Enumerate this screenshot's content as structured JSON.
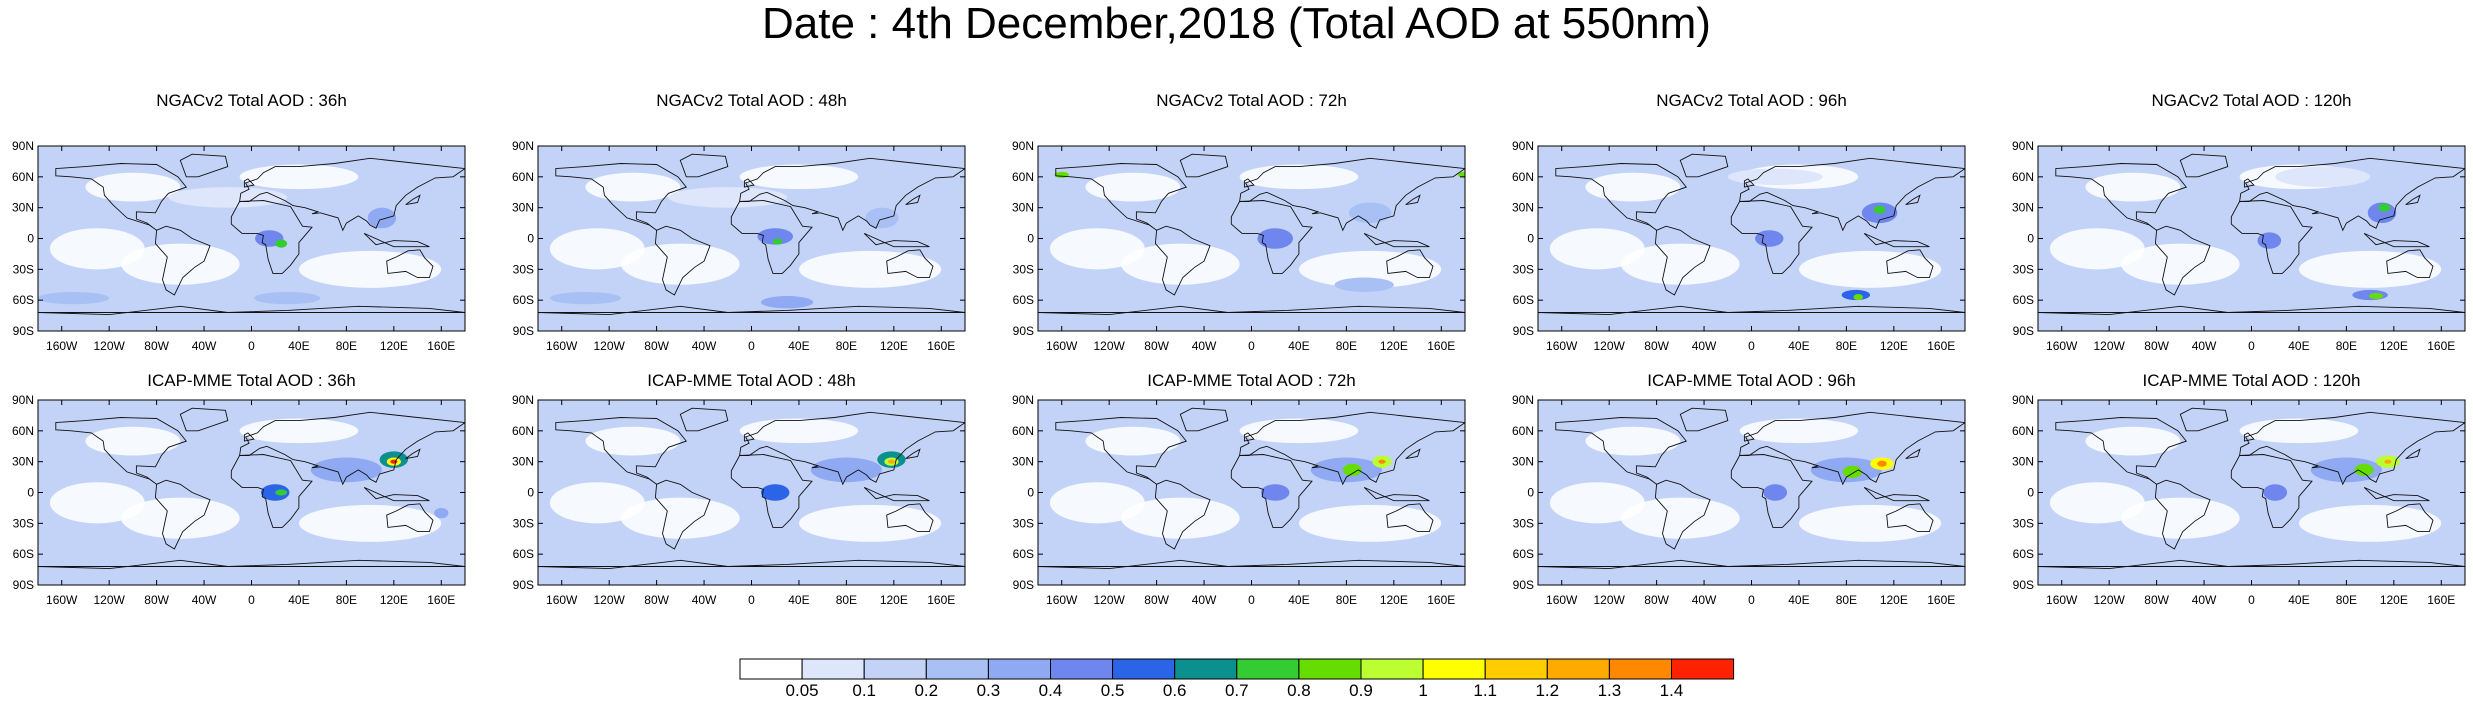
{
  "title": "Date : 4th December,2018 (Total AOD at 550nm)",
  "rows": [
    {
      "model": "NGACv2",
      "panels": [
        {
          "title": "NGACv2 Total AOD : 36h"
        },
        {
          "title": "NGACv2 Total AOD : 48h"
        },
        {
          "title": "NGACv2 Total AOD : 72h"
        },
        {
          "title": "NGACv2 Total AOD : 96h"
        },
        {
          "title": "NGACv2 Total AOD : 120h"
        }
      ]
    },
    {
      "model": "ICAP-MME",
      "panels": [
        {
          "title": "ICAP-MME Total AOD : 36h"
        },
        {
          "title": "ICAP-MME Total AOD : 48h"
        },
        {
          "title": "ICAP-MME Total AOD : 72h"
        },
        {
          "title": "ICAP-MME Total AOD : 96h"
        },
        {
          "title": "ICAP-MME Total AOD : 120h"
        }
      ]
    }
  ],
  "lat_labels": [
    "90N",
    "60N",
    "30N",
    "0",
    "30S",
    "60S",
    "90S"
  ],
  "lon_labels": [
    "160W",
    "120W",
    "80W",
    "40W",
    "0",
    "40E",
    "80E",
    "120E",
    "160E"
  ],
  "colorbar": {
    "labels": [
      "0.05",
      "0.1",
      "0.2",
      "0.3",
      "0.4",
      "0.5",
      "0.6",
      "0.7",
      "0.8",
      "0.9",
      "1",
      "1.1",
      "1.2",
      "1.3",
      "1.4"
    ],
    "colors": [
      "#ffffff",
      "#dde6fb",
      "#c3d3f8",
      "#a9c0f5",
      "#8fa9f2",
      "#6f86ee",
      "#2c64e8",
      "#0b8f8f",
      "#33cc33",
      "#66dd00",
      "#bbff33",
      "#ffff00",
      "#ffcc00",
      "#ffaa00",
      "#ff8800",
      "#ff2200"
    ]
  }
}
